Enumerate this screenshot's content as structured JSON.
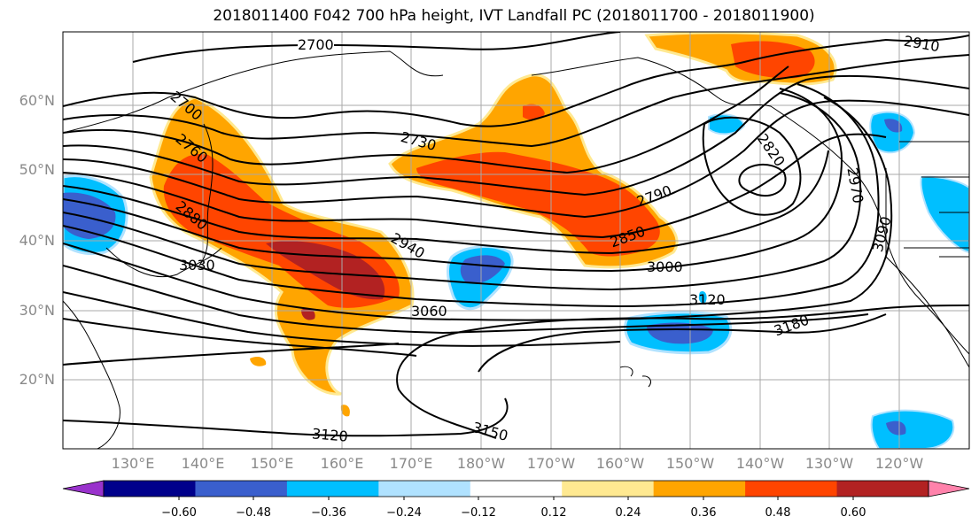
{
  "title": "2018011400 F042 700 hPa height, IVT Landfall PC (2018011700 - 2018011900)",
  "lat_labels": [
    "60°N",
    "50°N",
    "40°N",
    "30°N",
    "20°N"
  ],
  "lon_labels": [
    "130°E",
    "140°E",
    "150°E",
    "160°E",
    "170°E",
    "180°W",
    "170°W",
    "160°W",
    "150°W",
    "140°W",
    "130°W",
    "120°W"
  ],
  "contour_labels": [
    "2700",
    "2700",
    "2760",
    "2880",
    "3030",
    "2730",
    "2790",
    "2850",
    "2940",
    "3000",
    "3060",
    "3120",
    "3180",
    "3120",
    "3150",
    "2820",
    "2910",
    "2970",
    "3090"
  ],
  "colorbar": {
    "tick_labels": [
      "−0.60",
      "−0.48",
      "−0.36",
      "−0.24",
      "−0.12",
      "0.12",
      "0.24",
      "0.36",
      "0.48",
      "0.60"
    ],
    "colors": [
      "#9932cc",
      "#00008b",
      "#3a5fcd",
      "#00bfff",
      "#b0e2ff",
      "#ffffff",
      "#ffe991",
      "#ffa500",
      "#ff4500",
      "#b22222",
      "#ff82ab"
    ]
  }
}
